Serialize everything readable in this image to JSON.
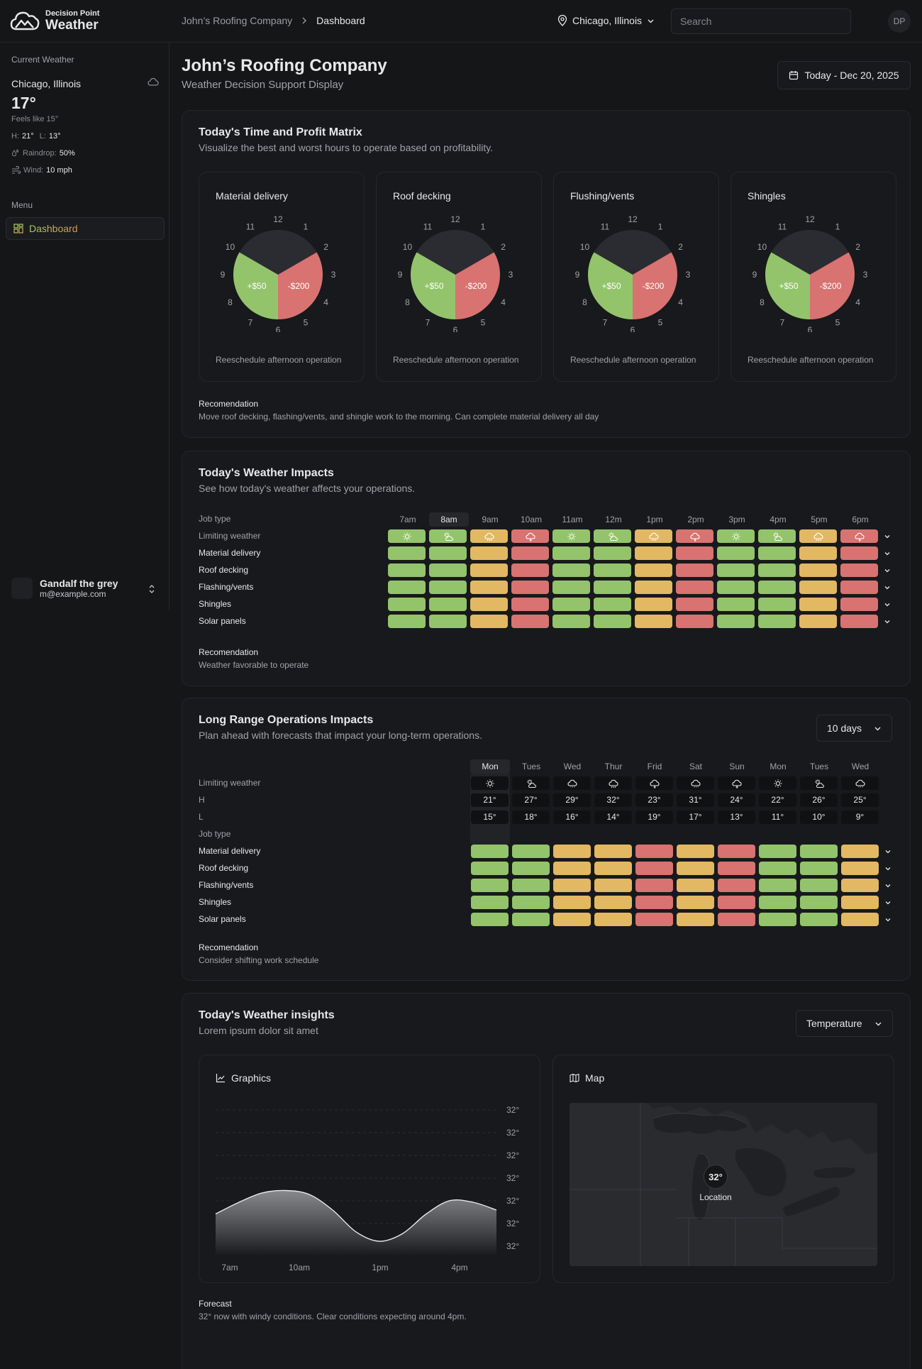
{
  "app": {
    "logo_small": "Decision Point",
    "logo_big": "Weather"
  },
  "header": {
    "breadcrumb": [
      "John’s Roofing Company",
      "Dashboard"
    ],
    "location": "Chicago, Illinois",
    "search_placeholder": "Search",
    "avatar": "DP"
  },
  "sidebar": {
    "current_weather_label": "Current Weather",
    "city": "Chicago, Illinois",
    "temp": "17°",
    "feels": "Feels like 15°",
    "high_label": "H:",
    "high": "21°",
    "low_label": "L:",
    "low": "13°",
    "rain_label": "Raindrop:",
    "rain": "50%",
    "wind_label": "Wind:",
    "wind": "10 mph",
    "menu_label": "Menu",
    "menu_items": [
      {
        "label": "Dashboard",
        "icon": "dashboard-grid-icon"
      }
    ],
    "user": {
      "name": "Gandalf the grey",
      "email": "m@example.com"
    }
  },
  "page": {
    "title": "John’s Roofing Company",
    "subtitle": "Weather Decision Support Display",
    "date": "Today - Dec 20, 2025"
  },
  "matrix": {
    "title": "Today's Time and Profit Matrix",
    "subtitle": "Visualize the best and worst hours to operate based on profitability.",
    "clock_numbers": [
      "12",
      "1",
      "2",
      "3",
      "4",
      "5",
      "6",
      "7",
      "8",
      "9",
      "10",
      "11"
    ],
    "colors": {
      "profit": "#93c46b",
      "loss": "#d87371",
      "idle": "#2b2c31"
    },
    "clocks": [
      {
        "title": "Material delivery",
        "profit": "+$50",
        "loss": "-$200",
        "footer": "Reeschedule afternoon operation"
      },
      {
        "title": "Roof decking",
        "profit": "+$50",
        "loss": "-$200",
        "footer": "Reeschedule afternoon operation"
      },
      {
        "title": "Flushing/vents",
        "profit": "+$50",
        "loss": "-$200",
        "footer": "Reeschedule afternoon operation"
      },
      {
        "title": "Shingles",
        "profit": "+$50",
        "loss": "-$200",
        "footer": "Reeschedule afternoon operation"
      }
    ],
    "rec_title": "Recomendation",
    "rec_text": "Move roof decking, flashing/vents, and shingle work to the morning. Can complete material delivery all day"
  },
  "impacts": {
    "title": "Today's Weather Impacts",
    "subtitle": "See how today's weather affects your operations.",
    "job_type_label": "Job type",
    "limiting_label": "Limiting weather",
    "hours": [
      "7am",
      "8am",
      "9am",
      "10am",
      "11am",
      "12m",
      "1pm",
      "2pm",
      "3pm",
      "4pm",
      "5pm",
      "6pm"
    ],
    "selected_hour": "8am",
    "limiting_icons": [
      "sun-icon",
      "sun-cloud-icon",
      "cloud-rain-icon",
      "cloud-lightning-icon",
      "sun-icon",
      "sun-cloud-icon",
      "cloud-rain-icon",
      "cloud-lightning-icon",
      "sun-icon",
      "sun-cloud-icon",
      "cloud-rain-icon",
      "cloud-lightning-icon"
    ],
    "status_colors": {
      "good": "#93c46b",
      "caution": "#e2b862",
      "bad": "#d87371"
    },
    "jobs": [
      {
        "name": "Material delivery",
        "status": [
          "good",
          "good",
          "caution",
          "bad",
          "good",
          "good",
          "caution",
          "bad",
          "good",
          "good",
          "caution",
          "bad"
        ]
      },
      {
        "name": "Roof decking",
        "status": [
          "good",
          "good",
          "caution",
          "bad",
          "good",
          "good",
          "caution",
          "bad",
          "good",
          "good",
          "caution",
          "bad"
        ]
      },
      {
        "name": "Flashing/vents",
        "status": [
          "good",
          "good",
          "caution",
          "bad",
          "good",
          "good",
          "caution",
          "bad",
          "good",
          "good",
          "caution",
          "bad"
        ]
      },
      {
        "name": "Shingles",
        "status": [
          "good",
          "good",
          "caution",
          "bad",
          "good",
          "good",
          "caution",
          "bad",
          "good",
          "good",
          "caution",
          "bad"
        ]
      },
      {
        "name": "Solar panels",
        "status": [
          "good",
          "good",
          "caution",
          "bad",
          "good",
          "good",
          "caution",
          "bad",
          "good",
          "good",
          "caution",
          "bad"
        ]
      }
    ],
    "rec_title": "Recomendation",
    "rec_text": "Weather favorable to operate"
  },
  "longrange": {
    "title": "Long Range Operations Impacts",
    "subtitle": "Plan ahead with forecasts that impact your long-term operations.",
    "range": "10 days",
    "limiting_label": "Limiting weather",
    "h_label": "H",
    "l_label": "L",
    "job_type_label": "Job type",
    "days": [
      "Mon",
      "Tues",
      "Wed",
      "Thur",
      "Frid",
      "Sat",
      "Sun",
      "Mon",
      "Tues",
      "Wed"
    ],
    "selected_day": "Mon",
    "icons": [
      "sun-icon",
      "sun-cloud-icon",
      "cloud-drizzle-icon",
      "cloud-rain-icon",
      "cloud-lightning-icon",
      "cloud-drizzle-icon",
      "cloud-lightning-icon",
      "sun-icon",
      "sun-cloud-icon",
      "cloud-drizzle-icon"
    ],
    "highs": [
      "21°",
      "27°",
      "29°",
      "32°",
      "23°",
      "31°",
      "24°",
      "22°",
      "26°",
      "25°"
    ],
    "lows": [
      "15°",
      "18°",
      "16°",
      "14°",
      "19°",
      "17°",
      "13°",
      "11°",
      "10°",
      "9°"
    ],
    "jobs": [
      {
        "name": "Material delivery",
        "status": [
          "good",
          "good",
          "caution",
          "caution",
          "bad",
          "caution",
          "bad",
          "good",
          "good",
          "caution"
        ]
      },
      {
        "name": "Roof decking",
        "status": [
          "good",
          "good",
          "caution",
          "caution",
          "bad",
          "caution",
          "bad",
          "good",
          "good",
          "caution"
        ]
      },
      {
        "name": "Flashing/vents",
        "status": [
          "good",
          "good",
          "caution",
          "caution",
          "bad",
          "caution",
          "bad",
          "good",
          "good",
          "caution"
        ]
      },
      {
        "name": "Shingles",
        "status": [
          "good",
          "good",
          "caution",
          "caution",
          "bad",
          "caution",
          "bad",
          "good",
          "good",
          "caution"
        ]
      },
      {
        "name": "Solar panels",
        "status": [
          "good",
          "good",
          "caution",
          "caution",
          "bad",
          "caution",
          "bad",
          "good",
          "good",
          "caution"
        ]
      }
    ],
    "rec_title": "Recomendation",
    "rec_text": "Consider shifting work schedule"
  },
  "insights": {
    "title": "Today's Weather insights",
    "subtitle": "Lorem ipsum dolor sit amet",
    "metric": "Temperature",
    "graphics_label": "Graphics",
    "map_label": "Map",
    "map_marker": {
      "value": "32°",
      "label": "Location"
    },
    "forecast_title": "Forecast",
    "forecast_text": "32° now with windy conditions. Clear conditions expecting around 4pm."
  },
  "chart_data": {
    "type": "area",
    "x_ticks": [
      "7am",
      "10am",
      "1pm",
      "4pm"
    ],
    "y_ticks": [
      "32°",
      "32°",
      "32°",
      "32°",
      "32°",
      "32°",
      "32°"
    ],
    "curve_shape": [
      0.45,
      0.6,
      0.72,
      0.75,
      0.7,
      0.5,
      0.22,
      0.1,
      0.2,
      0.45,
      0.62,
      0.6,
      0.5
    ],
    "grid": true
  }
}
